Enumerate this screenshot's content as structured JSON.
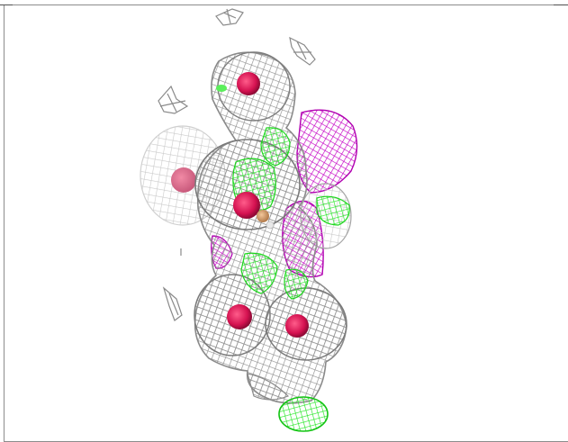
{
  "viewer": {
    "colors": {
      "background": "#ffffff",
      "mesh_gray": "#9a9a9a",
      "mesh_gray_light": "#c8c8c8",
      "mesh_magenta": "#cc00cc",
      "mesh_green": "#33ee33",
      "atom_red": "#e0185a",
      "atom_tan": "#d6a070",
      "frame": "#8c8c8c"
    }
  }
}
